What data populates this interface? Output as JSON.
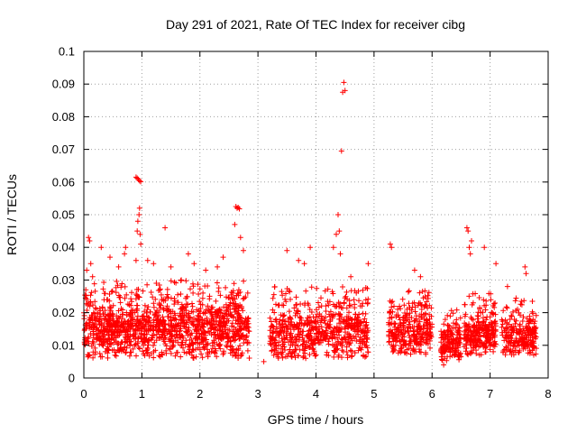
{
  "chart_data": {
    "type": "scatter",
    "title": "Day 291 of 2021, Rate Of TEC Index for receiver cibg",
    "xlabel": "GPS time / hours",
    "ylabel": "ROTI / TECUs",
    "xlim": [
      0,
      8
    ],
    "ylim": [
      0,
      0.1
    ],
    "xticks": [
      0,
      1,
      2,
      3,
      4,
      5,
      6,
      7,
      8
    ],
    "xtick_labels": [
      "0",
      "1",
      "2",
      "3",
      "4",
      "5",
      "6",
      "7",
      "8"
    ],
    "yticks": [
      0,
      0.01,
      0.02,
      0.03,
      0.04,
      0.05,
      0.06,
      0.07,
      0.08,
      0.09,
      0.1
    ],
    "ytick_labels": [
      "0",
      "0.01",
      "0.02",
      "0.03",
      "0.04",
      "0.05",
      "0.06",
      "0.07",
      "0.08",
      "0.09",
      "0.1"
    ],
    "grid": true,
    "marker": "plus",
    "color": "#ff0000",
    "series": [
      {
        "name": "ROTI",
        "dense_segments": [
          {
            "x_start": 0.0,
            "x_end": 2.85,
            "y_min": 0.006,
            "y_max": 0.03,
            "n": 1300
          },
          {
            "x_start": 3.2,
            "x_end": 4.9,
            "y_min": 0.006,
            "y_max": 0.028,
            "n": 650
          },
          {
            "x_start": 5.25,
            "x_end": 6.0,
            "y_min": 0.007,
            "y_max": 0.027,
            "n": 300
          },
          {
            "x_start": 6.15,
            "x_end": 6.5,
            "y_min": 0.005,
            "y_max": 0.022,
            "n": 160
          },
          {
            "x_start": 6.55,
            "x_end": 7.1,
            "y_min": 0.007,
            "y_max": 0.026,
            "n": 250
          },
          {
            "x_start": 7.2,
            "x_end": 7.8,
            "y_min": 0.007,
            "y_max": 0.025,
            "n": 230
          }
        ],
        "points": [
          [
            0.08,
            0.043
          ],
          [
            0.1,
            0.042
          ],
          [
            0.12,
            0.035
          ],
          [
            0.05,
            0.033
          ],
          [
            0.15,
            0.031
          ],
          [
            0.3,
            0.04
          ],
          [
            0.45,
            0.037
          ],
          [
            0.6,
            0.034
          ],
          [
            0.7,
            0.038
          ],
          [
            0.72,
            0.04
          ],
          [
            0.9,
            0.036
          ],
          [
            0.92,
            0.045
          ],
          [
            0.93,
            0.048
          ],
          [
            0.95,
            0.05
          ],
          [
            0.96,
            0.052
          ],
          [
            0.97,
            0.044
          ],
          [
            0.98,
            0.041
          ],
          [
            0.9,
            0.0615
          ],
          [
            0.92,
            0.0612
          ],
          [
            0.94,
            0.0608
          ],
          [
            0.96,
            0.0604
          ],
          [
            0.98,
            0.0601
          ],
          [
            1.1,
            0.036
          ],
          [
            1.2,
            0.035
          ],
          [
            1.4,
            0.046
          ],
          [
            1.5,
            0.034
          ],
          [
            1.8,
            0.038
          ],
          [
            1.9,
            0.035
          ],
          [
            2.1,
            0.033
          ],
          [
            2.3,
            0.034
          ],
          [
            2.4,
            0.037
          ],
          [
            2.6,
            0.047
          ],
          [
            2.62,
            0.0525
          ],
          [
            2.64,
            0.052
          ],
          [
            2.66,
            0.0522
          ],
          [
            2.68,
            0.0518
          ],
          [
            2.7,
            0.043
          ],
          [
            2.75,
            0.039
          ],
          [
            3.1,
            0.005
          ],
          [
            3.5,
            0.039
          ],
          [
            3.7,
            0.036
          ],
          [
            3.8,
            0.035
          ],
          [
            3.9,
            0.04
          ],
          [
            4.3,
            0.04
          ],
          [
            4.35,
            0.044
          ],
          [
            4.38,
            0.05
          ],
          [
            4.4,
            0.045
          ],
          [
            4.42,
            0.038
          ],
          [
            4.44,
            0.0695
          ],
          [
            4.46,
            0.0875
          ],
          [
            4.48,
            0.0905
          ],
          [
            4.5,
            0.088
          ],
          [
            4.6,
            0.031
          ],
          [
            4.9,
            0.035
          ],
          [
            5.28,
            0.041
          ],
          [
            5.3,
            0.04
          ],
          [
            5.7,
            0.033
          ],
          [
            5.8,
            0.031
          ],
          [
            6.2,
            0.004
          ],
          [
            6.6,
            0.046
          ],
          [
            6.62,
            0.045
          ],
          [
            6.64,
            0.04
          ],
          [
            6.66,
            0.038
          ],
          [
            6.68,
            0.042
          ],
          [
            6.9,
            0.04
          ],
          [
            7.1,
            0.035
          ],
          [
            7.3,
            0.028
          ],
          [
            7.6,
            0.034
          ],
          [
            7.62,
            0.032
          ]
        ]
      }
    ]
  }
}
